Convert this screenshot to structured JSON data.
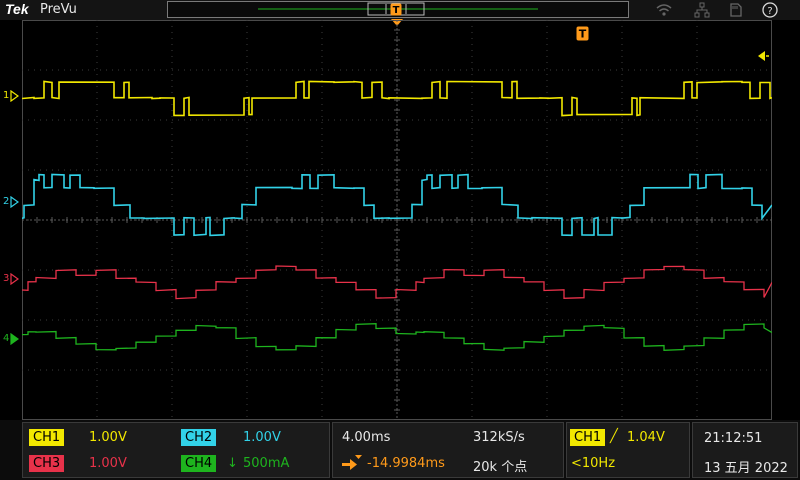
{
  "app": {
    "brand": "Tek",
    "mode": "PreVu"
  },
  "colors": {
    "ch1": "#f2e800",
    "ch2": "#32d2e8",
    "ch3": "#e8324a",
    "ch4": "#1eb41e",
    "trigger": "#ff9a1a"
  },
  "icons": {
    "wifi": "wifi-icon",
    "network": "network-icon",
    "storage": "usb-storage-icon",
    "help": "help-icon"
  },
  "markers": {
    "ch1": "1",
    "ch2": "2",
    "ch3": "3",
    "ch4": "4",
    "trigger": "T"
  },
  "channels": {
    "ch1": {
      "label": "CH1",
      "scale": "1.00V"
    },
    "ch2": {
      "label": "CH2",
      "scale": "1.00V"
    },
    "ch3": {
      "label": "CH3",
      "scale": "1.00V"
    },
    "ch4": {
      "label": "CH4",
      "scale": "500mA",
      "probe_symbol": "↓"
    }
  },
  "horizontal": {
    "scale": "4.00ms",
    "position": "-14.9984ms",
    "sample_rate": "312kS/s",
    "record_length": "20k 个点"
  },
  "trigger": {
    "source": "CH1",
    "slope_symbol": "╱",
    "level": "1.04V",
    "frequency": "<10Hz"
  },
  "clock": {
    "time": "21:12:51",
    "date": "13 五月 2022"
  }
}
